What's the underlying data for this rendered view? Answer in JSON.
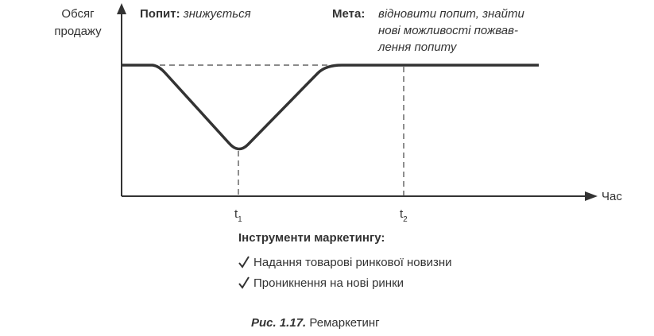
{
  "diagram": {
    "y_axis_label": [
      "Обсяг",
      "продажу"
    ],
    "x_axis_label": "Час",
    "demand": {
      "label": "Попит:",
      "text": "знижується"
    },
    "goal": {
      "label": "Мета:",
      "lines": [
        "відновити попит, знайти",
        "нові можливості пожвав-",
        "лення попиту"
      ]
    },
    "time_marks": [
      {
        "symbol": "t",
        "index": "1"
      },
      {
        "symbol": "t",
        "index": "2"
      }
    ],
    "tools": {
      "title": "Інструменти маркетингу:",
      "items": [
        "Надання товарові ринкової новизни",
        "Проникнення на нові ринки"
      ]
    },
    "caption": {
      "number": "Рис. 1.17.",
      "text": "Ремаркетинг"
    }
  }
}
